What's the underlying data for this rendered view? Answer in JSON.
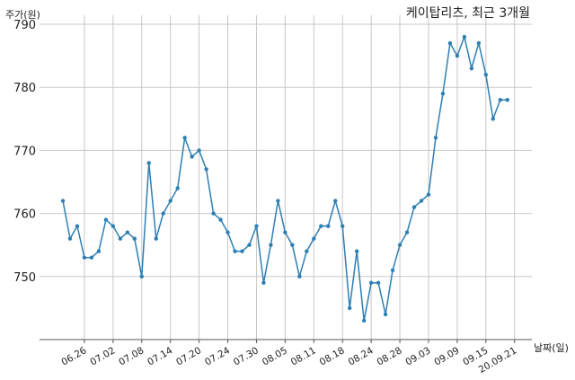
{
  "chart_data": {
    "type": "line",
    "title": "케이탑리츠, 최근 3개월",
    "ylabel": "주가(원)",
    "xlabel": "날짜(일)",
    "ylim": [
      740,
      790
    ],
    "yticks": [
      750,
      760,
      770,
      780,
      790
    ],
    "grid": true,
    "legend": "none",
    "x_tick_labels": [
      "06.26",
      "07.02",
      "07.08",
      "07.14",
      "07.20",
      "07.24",
      "07.30",
      "08.05",
      "08.11",
      "08.18",
      "08.24",
      "08.28",
      "09.03",
      "09.09",
      "09.15",
      "20.09.21"
    ],
    "x_tick_indices": [
      3,
      7,
      11,
      15,
      19,
      23,
      27,
      31,
      35,
      39,
      43,
      47,
      51,
      55,
      59,
      63
    ],
    "series": [
      {
        "color": "#2e7fb3",
        "values": [
          762,
          756,
          758,
          753,
          753,
          754,
          759,
          758,
          756,
          757,
          756,
          750,
          768,
          756,
          760,
          762,
          764,
          772,
          769,
          770,
          767,
          760,
          759,
          757,
          754,
          754,
          755,
          758,
          749,
          755,
          762,
          757,
          755,
          750,
          754,
          756,
          758,
          758,
          762,
          758,
          745,
          754,
          743,
          749,
          749,
          744,
          751,
          755,
          757,
          761,
          762,
          763,
          772,
          779,
          787,
          785,
          788,
          783,
          787,
          782,
          775,
          778,
          778
        ]
      }
    ]
  }
}
